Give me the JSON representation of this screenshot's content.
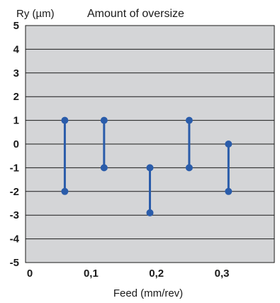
{
  "chart_data": {
    "type": "scatter",
    "title": "Amount of oversize",
    "xlabel": "Feed (mm/rev)",
    "ylabel": "Ry (µm)",
    "x_ticks": [
      "0",
      "0,1",
      "0,2",
      "0,3"
    ],
    "x_tick_values": [
      0,
      0.1,
      0.2,
      0.3
    ],
    "y_ticks": [
      "5",
      "4",
      "3",
      "2",
      "1",
      "0",
      "-1",
      "-2",
      "-3",
      "-4",
      "-5"
    ],
    "y_tick_values": [
      5,
      4,
      3,
      2,
      1,
      0,
      -1,
      -2,
      -3,
      -4,
      -5
    ],
    "xlim": [
      0,
      0.38
    ],
    "ylim": [
      -5,
      5
    ],
    "grid": "horizontal",
    "plot_background": "#d4d5d7",
    "series_color": "#2a5caa",
    "ranges": [
      {
        "x": 0.06,
        "high": 1,
        "low": -2
      },
      {
        "x": 0.12,
        "high": 1,
        "low": -1
      },
      {
        "x": 0.19,
        "high": -1,
        "low": -2.9
      },
      {
        "x": 0.25,
        "high": 1,
        "low": -1
      },
      {
        "x": 0.31,
        "high": 0,
        "low": -2
      }
    ]
  }
}
